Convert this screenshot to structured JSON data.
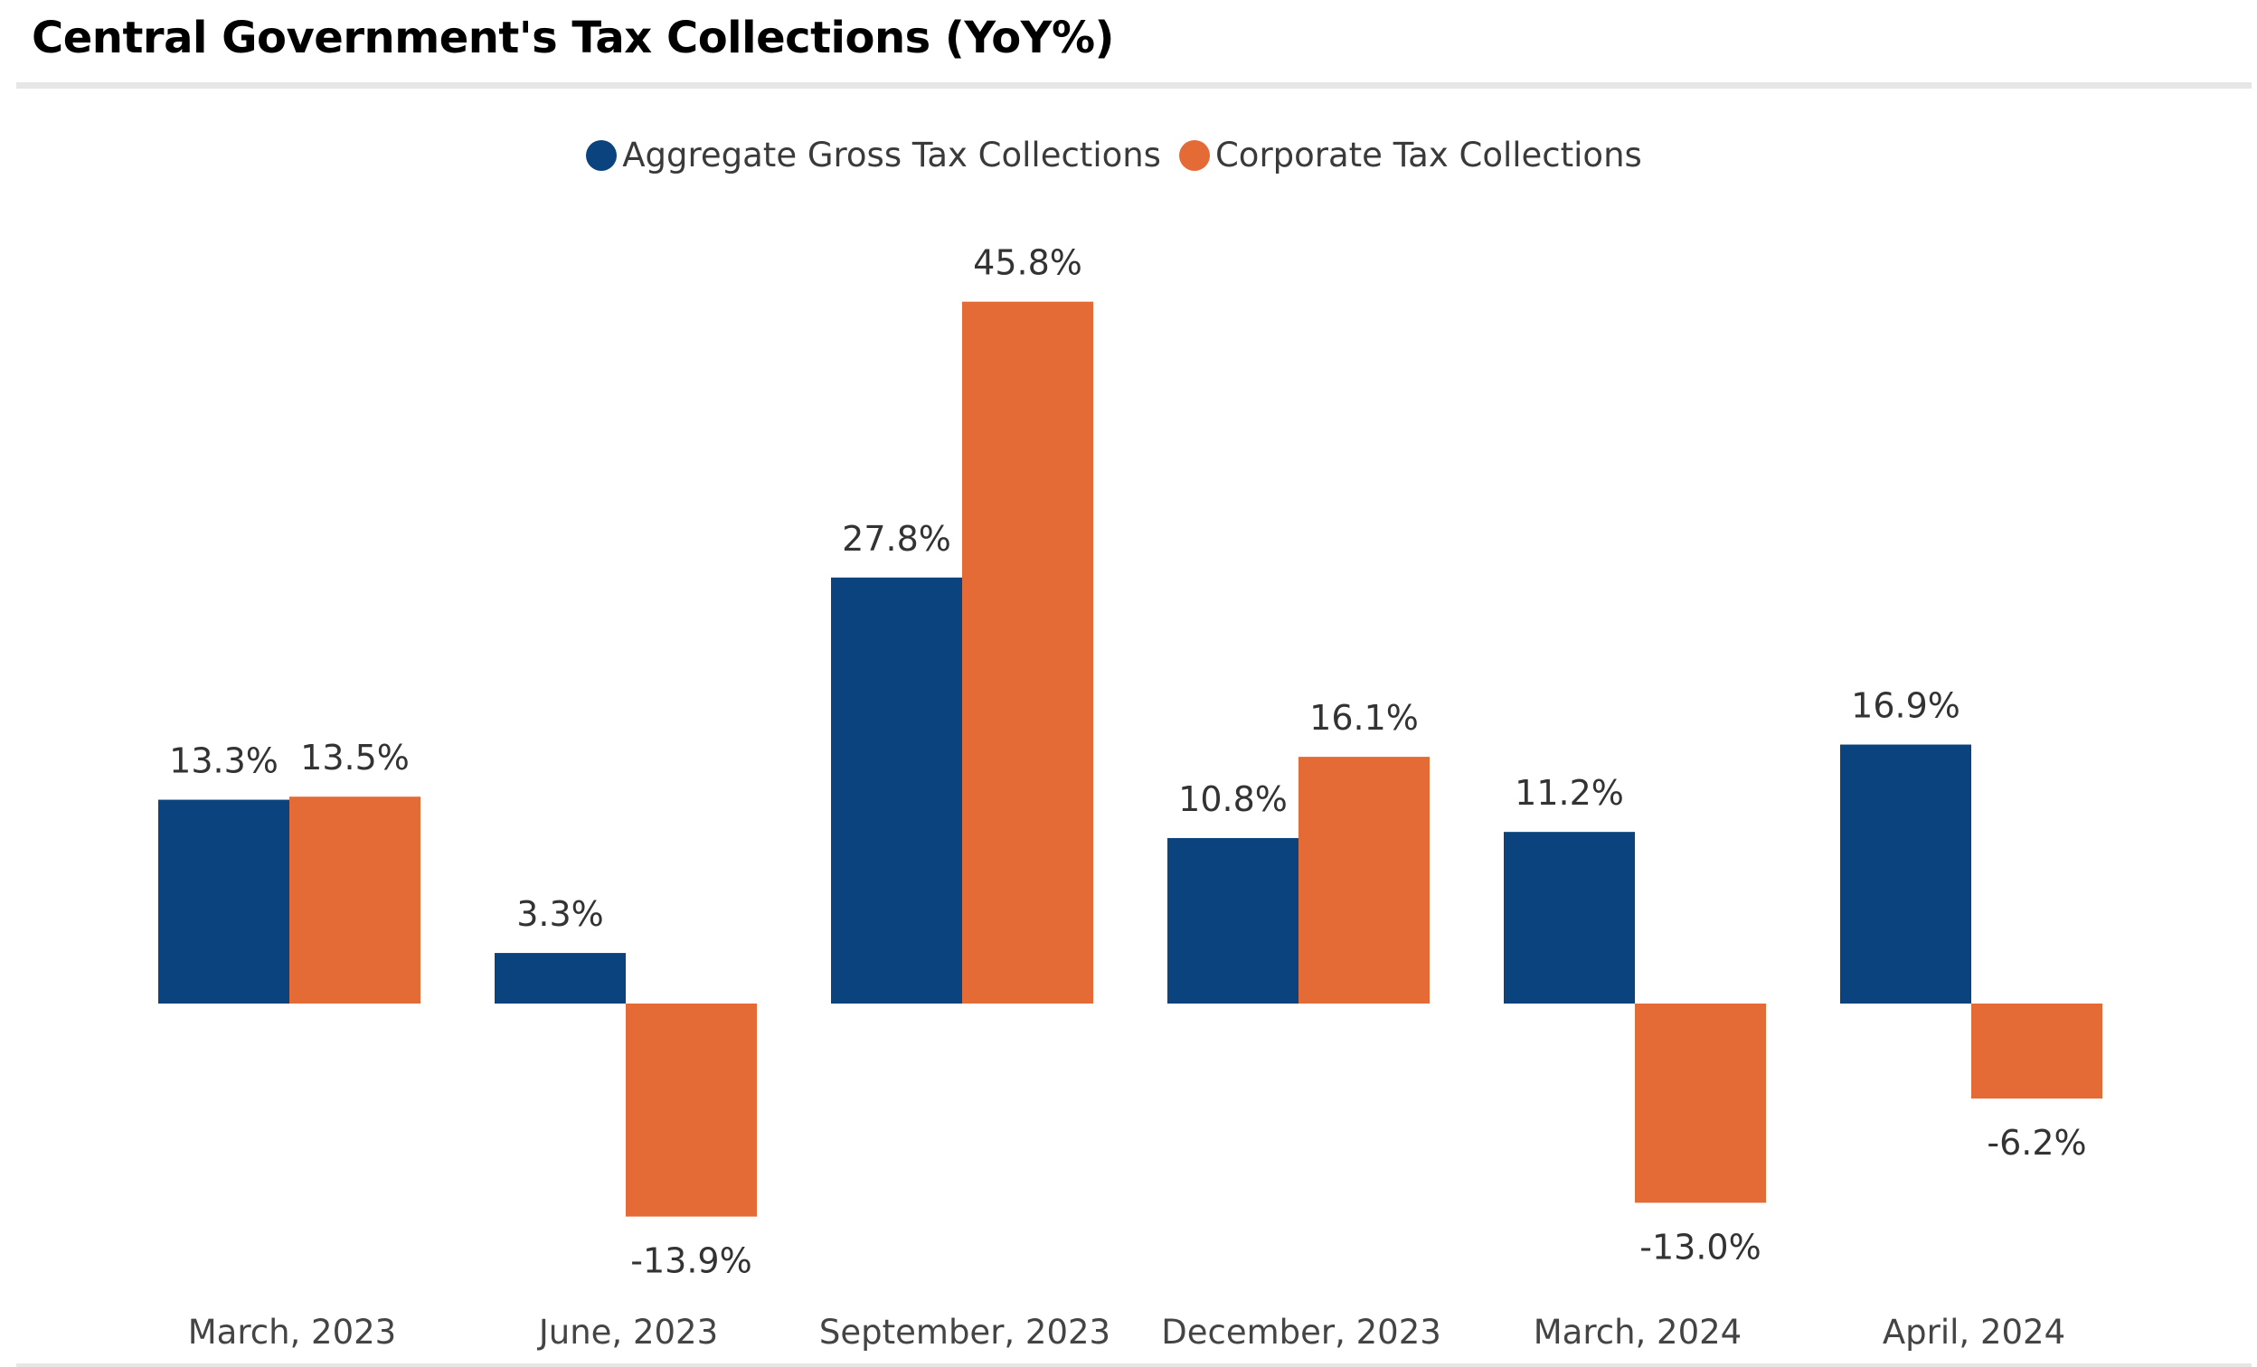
{
  "colors": {
    "aggregate": "#0a437e",
    "corporate": "#e46a36",
    "title": "#000000",
    "label": "#333333"
  },
  "chart_data": {
    "type": "bar",
    "title": "Central Government's Tax Collections (YoY%)",
    "xlabel": "",
    "ylabel": "",
    "grid": false,
    "legend_position": "top-center",
    "value_format": "percent-1dp",
    "ylim": [
      -15,
      48
    ],
    "categories": [
      "March, 2023",
      "June, 2023",
      "September, 2023",
      "December, 2023",
      "March, 2024",
      "April, 2024"
    ],
    "series": [
      {
        "name": "Aggregate Gross Tax Collections",
        "color_key": "aggregate",
        "values": [
          13.3,
          3.3,
          27.8,
          10.8,
          11.2,
          16.9
        ],
        "labels": [
          "13.3%",
          "3.3%",
          "27.8%",
          "10.8%",
          "11.2%",
          "16.9%"
        ]
      },
      {
        "name": "Corporate Tax Collections",
        "color_key": "corporate",
        "values": [
          13.5,
          -13.9,
          45.8,
          16.1,
          -13.0,
          -6.2
        ],
        "labels": [
          "13.5%",
          "-13.9%",
          "45.8%",
          "16.1%",
          "-13.0%",
          "-6.2%"
        ]
      }
    ]
  }
}
